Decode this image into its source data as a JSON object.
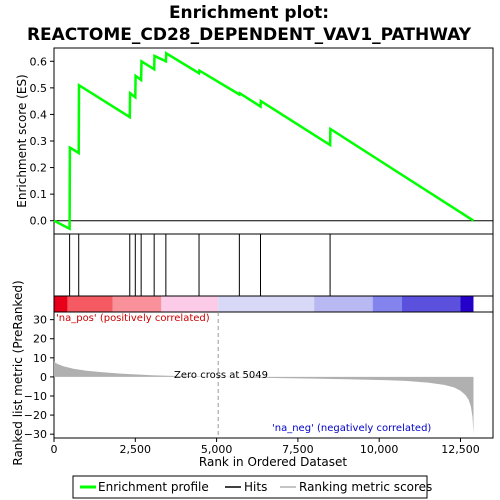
{
  "chart_data": {
    "type": "line",
    "title_line1": "Enrichment plot:",
    "title_line2": "REACTOME_CD28_DEPENDENT_VAV1_PATHWAY",
    "es_panel": {
      "ylabel": "Enrichment score (ES)",
      "ylim": [
        -0.05,
        0.65
      ],
      "yticks": [
        0.0,
        0.1,
        0.2,
        0.3,
        0.4,
        0.5,
        0.6
      ],
      "ytick_labels": [
        "0.0",
        "0.1",
        "0.2",
        "0.3",
        "0.4",
        "0.5",
        "0.6"
      ],
      "line_color": "#00ff00",
      "points": [
        [
          0,
          0.0
        ],
        [
          480,
          -0.03
        ],
        [
          490,
          0.275
        ],
        [
          760,
          0.255
        ],
        [
          770,
          0.51
        ],
        [
          2330,
          0.39
        ],
        [
          2340,
          0.48
        ],
        [
          2500,
          0.465
        ],
        [
          2510,
          0.545
        ],
        [
          2680,
          0.53
        ],
        [
          2690,
          0.6
        ],
        [
          3080,
          0.57
        ],
        [
          3090,
          0.62
        ],
        [
          3440,
          0.6
        ],
        [
          3450,
          0.63
        ],
        [
          4460,
          0.555
        ],
        [
          4470,
          0.565
        ],
        [
          5700,
          0.475
        ],
        [
          5710,
          0.48
        ],
        [
          6350,
          0.43
        ],
        [
          6360,
          0.45
        ],
        [
          8490,
          0.285
        ],
        [
          8500,
          0.345
        ],
        [
          12900,
          0.0
        ]
      ]
    },
    "hits": [
      480,
      760,
      2330,
      2500,
      2680,
      3080,
      3440,
      4460,
      5700,
      6350,
      8490
    ],
    "color_band": [
      {
        "start": 0,
        "end": 420,
        "color": "#e8001a"
      },
      {
        "start": 420,
        "end": 1800,
        "color": "#f55a63"
      },
      {
        "start": 1800,
        "end": 3300,
        "color": "#f8919a"
      },
      {
        "start": 3300,
        "end": 5049,
        "color": "#fbcbe8"
      },
      {
        "start": 5049,
        "end": 8000,
        "color": "#d8d8f7"
      },
      {
        "start": 8000,
        "end": 9800,
        "color": "#b8b8f2"
      },
      {
        "start": 9800,
        "end": 10700,
        "color": "#8484ee"
      },
      {
        "start": 10700,
        "end": 12500,
        "color": "#5c50de"
      },
      {
        "start": 12500,
        "end": 12900,
        "color": "#2400c8"
      }
    ],
    "metric_panel": {
      "ylabel": "Ranked list metric (PreRanked)",
      "ylim": [
        -32,
        34
      ],
      "yticks": [
        -30,
        -20,
        -10,
        0,
        10,
        20,
        30
      ],
      "ytick_labels": [
        "−30",
        "−20",
        "−10",
        "0",
        "10",
        "20",
        "30"
      ],
      "fill_color": "#b0b0b0",
      "curve": [
        [
          0,
          8
        ],
        [
          100,
          6.8
        ],
        [
          300,
          5.5
        ],
        [
          600,
          4.3
        ],
        [
          1000,
          3.2
        ],
        [
          1500,
          2.4
        ],
        [
          2000,
          1.8
        ],
        [
          2500,
          1.3
        ],
        [
          3000,
          0.9
        ],
        [
          3500,
          0.6
        ],
        [
          4000,
          0.4
        ],
        [
          4500,
          0.2
        ],
        [
          5049,
          0.0
        ],
        [
          6000,
          -0.3
        ],
        [
          7000,
          -0.6
        ],
        [
          8000,
          -0.9
        ],
        [
          9000,
          -1.2
        ],
        [
          10000,
          -1.6
        ],
        [
          10800,
          -2.1
        ],
        [
          11500,
          -3.0
        ],
        [
          12000,
          -4.2
        ],
        [
          12300,
          -5.5
        ],
        [
          12500,
          -7.2
        ],
        [
          12650,
          -9.5
        ],
        [
          12750,
          -12
        ],
        [
          12820,
          -15.5
        ],
        [
          12870,
          -21
        ],
        [
          12900,
          -30
        ]
      ],
      "pos_label": "'na_pos' (positively correlated)",
      "neg_label": "'na_neg' (negatively correlated)",
      "zero_cross_label": "Zero cross at 5049",
      "zero_cross": 5049
    },
    "xlabel": "Rank in Ordered Dataset",
    "xlim": [
      0,
      13500
    ],
    "xticks": [
      0,
      2500,
      5000,
      7500,
      10000,
      12500
    ],
    "xtick_labels": [
      "0",
      "2,500",
      "5,000",
      "7,500",
      "10,000",
      "12,500"
    ],
    "legend": {
      "enrichment": "Enrichment profile",
      "hits": "Hits",
      "ranking": "Ranking metric scores"
    }
  }
}
